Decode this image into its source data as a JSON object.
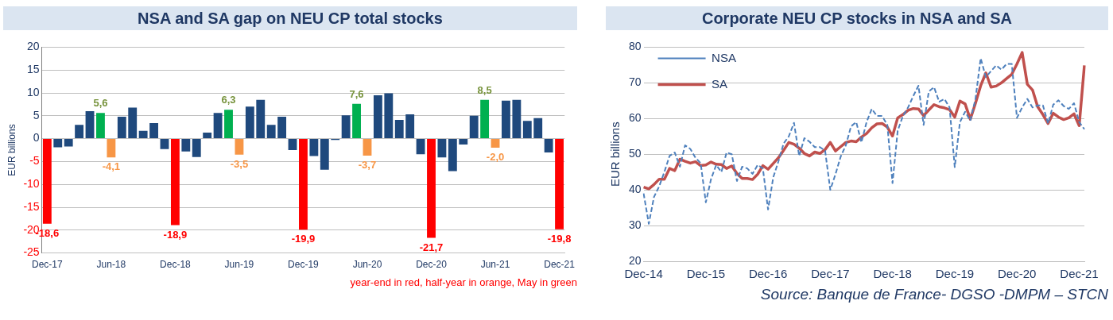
{
  "chart_data": [
    {
      "type": "bar",
      "title": "NSA and SA gap on NEU CP total stocks",
      "ylabel": "EUR billions",
      "categories": [
        "Dec-17",
        null,
        null,
        null,
        null,
        null,
        "Jun-18",
        null,
        null,
        null,
        null,
        null,
        "Dec-18",
        null,
        null,
        null,
        null,
        null,
        "Jun-19",
        null,
        null,
        null,
        null,
        null,
        "Dec-19",
        null,
        null,
        null,
        null,
        null,
        "Jun-20",
        null,
        null,
        null,
        null,
        null,
        "Dec-20",
        null,
        null,
        null,
        null,
        null,
        "Jun-21",
        null,
        null,
        null,
        null,
        null,
        "Dec-21"
      ],
      "values": [
        -18.6,
        -1.9,
        -1.7,
        3.0,
        6.0,
        5.6,
        -4.1,
        4.8,
        6.8,
        1.7,
        3.4,
        -2.3,
        -18.9,
        -2.8,
        -4.0,
        1.3,
        5.6,
        6.3,
        -3.5,
        7.0,
        8.5,
        3.0,
        4.8,
        -2.5,
        -19.9,
        -3.8,
        -6.8,
        -0.3,
        5.1,
        7.6,
        -3.7,
        9.5,
        9.9,
        4.1,
        5.3,
        -3.4,
        -21.7,
        -4.1,
        -7.1,
        -1.3,
        5.0,
        8.5,
        -2.0,
        8.3,
        8.5,
        3.9,
        4.5,
        -3.0,
        -19.8
      ],
      "colors": [
        "#ff0000",
        "#1f497d",
        "#1f497d",
        "#1f497d",
        "#1f497d",
        "#00b050",
        "#f79646",
        "#1f497d",
        "#1f497d",
        "#1f497d",
        "#1f497d",
        "#1f497d",
        "#ff0000",
        "#1f497d",
        "#1f497d",
        "#1f497d",
        "#1f497d",
        "#00b050",
        "#f79646",
        "#1f497d",
        "#1f497d",
        "#1f497d",
        "#1f497d",
        "#1f497d",
        "#ff0000",
        "#1f497d",
        "#1f497d",
        "#1f497d",
        "#1f497d",
        "#00b050",
        "#f79646",
        "#1f497d",
        "#1f497d",
        "#1f497d",
        "#1f497d",
        "#1f497d",
        "#ff0000",
        "#1f497d",
        "#1f497d",
        "#1f497d",
        "#1f497d",
        "#00b050",
        "#f79646",
        "#1f497d",
        "#1f497d",
        "#1f497d",
        "#1f497d",
        "#1f497d",
        "#ff0000"
      ],
      "value_labels": [
        "-18,6",
        null,
        null,
        null,
        null,
        "5,6",
        "-4,1",
        null,
        null,
        null,
        null,
        null,
        "-18,9",
        null,
        null,
        null,
        null,
        "6,3",
        "-3,5",
        null,
        null,
        null,
        null,
        null,
        "-19,9",
        null,
        null,
        null,
        null,
        "7,6",
        "-3,7",
        null,
        null,
        null,
        null,
        null,
        "-21,7",
        null,
        null,
        null,
        null,
        "8,5",
        "-2,0",
        null,
        null,
        null,
        null,
        null,
        "-19,8"
      ],
      "ylim": [
        -25,
        20
      ],
      "yticks": [
        -25,
        -20,
        -15,
        -10,
        -5,
        0,
        5,
        10,
        15,
        20
      ],
      "grid": "y",
      "legend": false,
      "annotations": [
        "year-end in red, half-year in orange, May in green"
      ]
    },
    {
      "type": "line",
      "title": "Corporate NEU CP stocks in NSA and SA",
      "ylabel": "EUR billions",
      "categories": [
        "Dec-14",
        null,
        null,
        null,
        null,
        null,
        null,
        null,
        null,
        null,
        null,
        null,
        "Dec-15",
        null,
        null,
        null,
        null,
        null,
        null,
        null,
        null,
        null,
        null,
        null,
        "Dec-16",
        null,
        null,
        null,
        null,
        null,
        null,
        null,
        null,
        null,
        null,
        null,
        "Dec-17",
        null,
        null,
        null,
        null,
        null,
        null,
        null,
        null,
        null,
        null,
        null,
        "Dec-18",
        null,
        null,
        null,
        null,
        null,
        null,
        null,
        null,
        null,
        null,
        null,
        "Dec-19",
        null,
        null,
        null,
        null,
        null,
        null,
        null,
        null,
        null,
        null,
        null,
        "Dec-20",
        null,
        null,
        null,
        null,
        null,
        null,
        null,
        null,
        null,
        null,
        null,
        "Dec-21",
        null
      ],
      "series": [
        {
          "name": "NSA",
          "color": "#4f81bd",
          "line_style": "dashed",
          "values": [
            39,
            30.5,
            38,
            41,
            45,
            49.5,
            50.5,
            46.5,
            52.5,
            51.5,
            49,
            47.5,
            36.5,
            43,
            47,
            45,
            50.5,
            50,
            42.5,
            46.5,
            46,
            44.5,
            47,
            46,
            34.5,
            43.5,
            48,
            53,
            55,
            58.8,
            49.5,
            54.5,
            53.5,
            52,
            52,
            51,
            40,
            44.4,
            49.3,
            52.5,
            57.8,
            59.0,
            53.3,
            59.0,
            62.7,
            60.7,
            60.7,
            58.2,
            41.9,
            56.6,
            60.7,
            63.1,
            66.3,
            69.2,
            58.2,
            67.6,
            68.8,
            64.7,
            65.5,
            63.1,
            46.4,
            59.0,
            61.9,
            59.4,
            65.5,
            76.9,
            71.6,
            73.3,
            74.9,
            73.7,
            75.3,
            75.3,
            60.2,
            63.1,
            65.5,
            63.1,
            63.7,
            63.7,
            58.6,
            63.9,
            65.1,
            63.5,
            62.7,
            64.3,
            59.0,
            57.0
          ]
        },
        {
          "name": "SA",
          "color": "#c0504d",
          "line_style": "solid",
          "values": [
            40.8,
            40.3,
            41.5,
            43.0,
            43.0,
            46.0,
            45.4,
            48.6,
            48.0,
            47.5,
            47.9,
            46.8,
            47.0,
            47.8,
            47.2,
            47.1,
            46.0,
            46.7,
            44.6,
            43.2,
            43.2,
            42.9,
            44.4,
            46.8,
            45.8,
            47.4,
            49.0,
            51.1,
            53.3,
            52.8,
            51.7,
            50.2,
            49.5,
            50.6,
            50.2,
            51.3,
            53.3,
            50.9,
            52.1,
            53.3,
            53.7,
            53.5,
            54.8,
            55.8,
            57.4,
            58.5,
            58.6,
            57.6,
            55.1,
            60.2,
            61.1,
            62.3,
            62.8,
            62.7,
            60.8,
            62.4,
            63.9,
            63.3,
            63.0,
            62.5,
            60.4,
            64.9,
            64.1,
            59.8,
            64.3,
            69.2,
            72.8,
            68.8,
            69.1,
            70.0,
            71.2,
            72.4,
            75.3,
            78.5,
            69.6,
            68.0,
            63.3,
            61.1,
            58.6,
            61.5,
            60.4,
            59.7,
            60.2,
            61.3,
            58.0,
            74.9
          ]
        }
      ],
      "ylim": [
        20,
        80
      ],
      "yticks": [
        20,
        30,
        40,
        50,
        60,
        70,
        80
      ],
      "grid": "y",
      "legend": "top left",
      "marker": "none",
      "annotations": [
        "Source: Banque de France- DGSO -DMPM – STCN"
      ]
    }
  ]
}
